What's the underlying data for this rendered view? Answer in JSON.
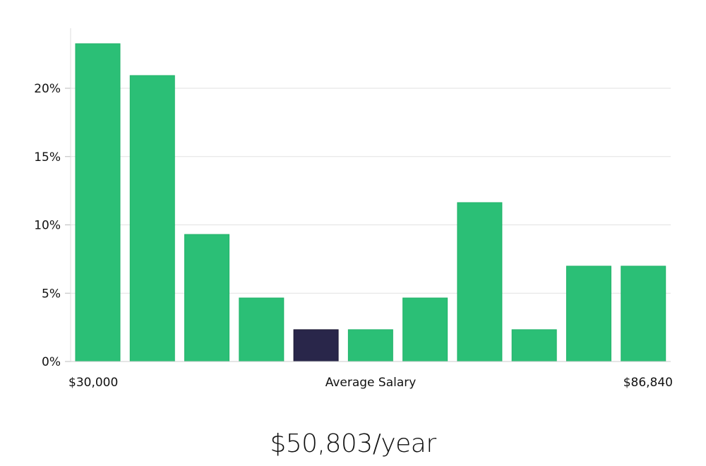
{
  "chart_data": {
    "type": "bar",
    "title": "",
    "xlabel": "Average Salary",
    "ylabel": "",
    "x_min_label": "$30,000",
    "x_max_label": "$86,840",
    "categories": [
      "1",
      "2",
      "3",
      "4",
      "5",
      "6",
      "7",
      "8",
      "9",
      "10",
      "11"
    ],
    "values": [
      23.26,
      20.93,
      9.3,
      4.65,
      2.33,
      2.33,
      4.65,
      11.63,
      2.33,
      6.98,
      6.98
    ],
    "highlight_index": 4,
    "ylim": [
      0,
      24.4
    ],
    "yticks": [
      0,
      5,
      10,
      15,
      20
    ],
    "ytick_labels": [
      "0%",
      "5%",
      "10%",
      "15%",
      "20%"
    ],
    "grid": true,
    "colors": {
      "bar": "#2bbf76",
      "bar_border": "#22b36a",
      "highlight": "#29264a",
      "grid": "#e2e2e2"
    }
  },
  "summary": {
    "average_salary": "$50,803/year"
  }
}
